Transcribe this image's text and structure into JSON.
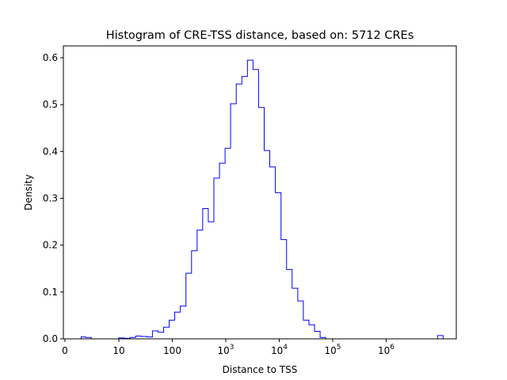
{
  "chart_data": {
    "type": "histogram",
    "title": "Histogram of CRE-TSS distance, based on: 5712 CREs",
    "xlabel": "Distance to TSS",
    "ylabel": "Density",
    "x_scale": "symlog",
    "xlim": [
      0,
      30000000
    ],
    "ylim": [
      0,
      0.62
    ],
    "x_ticks": [
      {
        "value": 0,
        "label": "0"
      },
      {
        "value": 10,
        "label": "10"
      },
      {
        "value": 100,
        "label": "100"
      },
      {
        "value": 1000,
        "label": "10",
        "exp": "3"
      },
      {
        "value": 10000,
        "label": "10",
        "exp": "4"
      },
      {
        "value": 100000,
        "label": "10",
        "exp": "5"
      },
      {
        "value": 1000000,
        "label": "10",
        "exp": "6"
      }
    ],
    "y_ticks": [
      {
        "value": 0.0,
        "label": "0.0"
      },
      {
        "value": 0.1,
        "label": "0.1"
      },
      {
        "value": 0.2,
        "label": "0.2"
      },
      {
        "value": 0.3,
        "label": "0.3"
      },
      {
        "value": 0.4,
        "label": "0.4"
      },
      {
        "value": 0.5,
        "label": "0.5"
      },
      {
        "value": 0.6,
        "label": "0.6"
      }
    ],
    "bin_edges": [
      3,
      3.8,
      4.9,
      6.2,
      7.9,
      10,
      12.7,
      16.2,
      20.6,
      26.2,
      33.4,
      42.5,
      54.1,
      68.8,
      87.6,
      111,
      141,
      180,
      229,
      291,
      370,
      471,
      599,
      763,
      970,
      1230,
      1570,
      2000,
      2540,
      3230,
      4110,
      5230,
      6650,
      8460,
      10800,
      13700,
      17400,
      22200,
      28200,
      35900,
      45700,
      58100,
      73900,
      94100,
      120000,
      152000,
      194000,
      247000,
      314000,
      399000,
      508000,
      646000,
      822000,
      1050000,
      1330000,
      1690000,
      2150000,
      2740000,
      3480000,
      4430000,
      5640000,
      7170000,
      9120000,
      11600000,
      14800000
    ],
    "densities": [
      0.004,
      0.003,
      0.0,
      0.0,
      0.0,
      0.002,
      0.001,
      0.003,
      0.006,
      0.005,
      0.004,
      0.017,
      0.014,
      0.025,
      0.04,
      0.057,
      0.07,
      0.14,
      0.188,
      0.232,
      0.278,
      0.25,
      0.343,
      0.375,
      0.407,
      0.502,
      0.544,
      0.56,
      0.595,
      0.575,
      0.494,
      0.402,
      0.367,
      0.312,
      0.212,
      0.148,
      0.108,
      0.081,
      0.04,
      0.03,
      0.016,
      0.003,
      0.0,
      0.0,
      0.0,
      0.0,
      0.0,
      0.0,
      0.0,
      0.0,
      0.0,
      0.0,
      0.0,
      0.0,
      0.0,
      0.0,
      0.0,
      0.0,
      0.0,
      0.0,
      0.0,
      0.0,
      0.007,
      0.0
    ],
    "line_color": "#0000ff"
  }
}
